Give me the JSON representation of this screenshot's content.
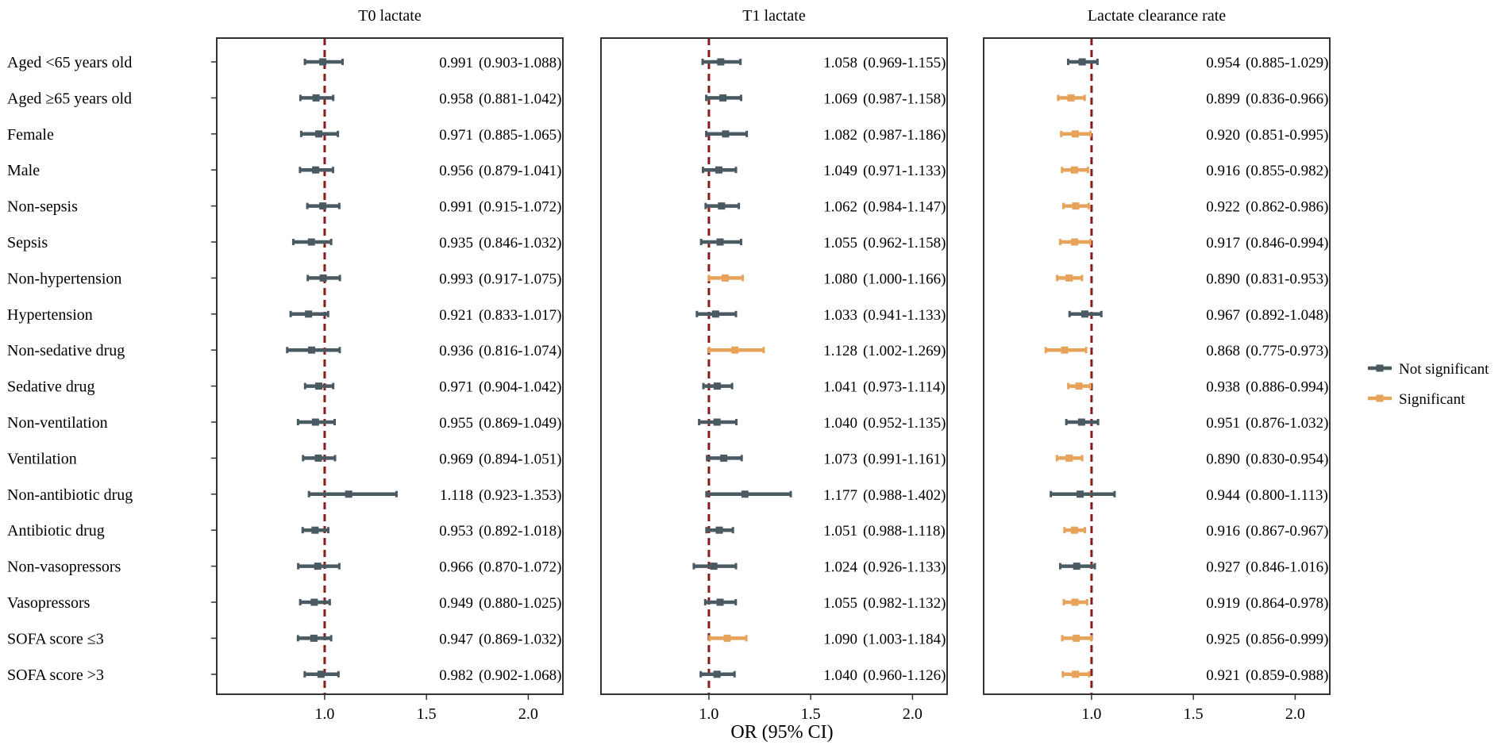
{
  "colors": {
    "not_significant": "#4a5a63",
    "significant": "#e8a35a",
    "reference": "#8b1a1a",
    "frame": "#333333"
  },
  "chart_data": {
    "type": "forest",
    "xlabel": "OR (95% CI)",
    "x_ticks": [
      "1.0",
      "1.5",
      "2.0"
    ],
    "x_tick_values": [
      1.0,
      1.5,
      2.0
    ],
    "xlim": [
      0.47,
      2.17
    ],
    "reference_line": 1.0,
    "legend": {
      "position": "right",
      "items": [
        {
          "label": "Not significant",
          "key": "not_significant"
        },
        {
          "label": "Significant",
          "key": "significant"
        }
      ]
    },
    "row_labels": [
      "Aged <65 years old",
      "Aged ≥65 years old",
      "Female",
      "Male",
      "Non-sepsis",
      "Sepsis",
      "Non-hypertension",
      "Hypertension",
      "Non-sedative drug",
      "Sedative drug",
      "Non-ventilation",
      "Ventilation",
      "Non-antibiotic drug",
      "Antibiotic drug",
      "Non-vasopressors",
      "Vasopressors",
      "SOFA score ≤3",
      "SOFA score >3"
    ],
    "panels": [
      {
        "title": "T0 lactate",
        "rows": [
          {
            "or": 0.991,
            "lo": 0.903,
            "hi": 1.088,
            "label_or": "0.991",
            "label_ci": "(0.903-1.088)",
            "significant": false
          },
          {
            "or": 0.958,
            "lo": 0.881,
            "hi": 1.042,
            "label_or": "0.958",
            "label_ci": "(0.881-1.042)",
            "significant": false
          },
          {
            "or": 0.971,
            "lo": 0.885,
            "hi": 1.065,
            "label_or": "0.971",
            "label_ci": "(0.885-1.065)",
            "significant": false
          },
          {
            "or": 0.956,
            "lo": 0.879,
            "hi": 1.041,
            "label_or": "0.956",
            "label_ci": "(0.879-1.041)",
            "significant": false
          },
          {
            "or": 0.991,
            "lo": 0.915,
            "hi": 1.072,
            "label_or": "0.991",
            "label_ci": "(0.915-1.072)",
            "significant": false
          },
          {
            "or": 0.935,
            "lo": 0.846,
            "hi": 1.032,
            "label_or": "0.935",
            "label_ci": "(0.846-1.032)",
            "significant": false
          },
          {
            "or": 0.993,
            "lo": 0.917,
            "hi": 1.075,
            "label_or": "0.993",
            "label_ci": "(0.917-1.075)",
            "significant": false
          },
          {
            "or": 0.921,
            "lo": 0.833,
            "hi": 1.017,
            "label_or": "0.921",
            "label_ci": "(0.833-1.017)",
            "significant": false
          },
          {
            "or": 0.936,
            "lo": 0.816,
            "hi": 1.074,
            "label_or": "0.936",
            "label_ci": "(0.816-1.074)",
            "significant": false
          },
          {
            "or": 0.971,
            "lo": 0.904,
            "hi": 1.042,
            "label_or": "0.971",
            "label_ci": "(0.904-1.042)",
            "significant": false
          },
          {
            "or": 0.955,
            "lo": 0.869,
            "hi": 1.049,
            "label_or": "0.955",
            "label_ci": "(0.869-1.049)",
            "significant": false
          },
          {
            "or": 0.969,
            "lo": 0.894,
            "hi": 1.051,
            "label_or": "0.969",
            "label_ci": "(0.894-1.051)",
            "significant": false
          },
          {
            "or": 1.118,
            "lo": 0.923,
            "hi": 1.353,
            "label_or": "1.118",
            "label_ci": "(0.923-1.353)",
            "significant": false
          },
          {
            "or": 0.953,
            "lo": 0.892,
            "hi": 1.018,
            "label_or": "0.953",
            "label_ci": "(0.892-1.018)",
            "significant": false
          },
          {
            "or": 0.966,
            "lo": 0.87,
            "hi": 1.072,
            "label_or": "0.966",
            "label_ci": "(0.870-1.072)",
            "significant": false
          },
          {
            "or": 0.949,
            "lo": 0.88,
            "hi": 1.025,
            "label_or": "0.949",
            "label_ci": "(0.880-1.025)",
            "significant": false
          },
          {
            "or": 0.947,
            "lo": 0.869,
            "hi": 1.032,
            "label_or": "0.947",
            "label_ci": "(0.869-1.032)",
            "significant": false
          },
          {
            "or": 0.982,
            "lo": 0.902,
            "hi": 1.068,
            "label_or": "0.982",
            "label_ci": "(0.902-1.068)",
            "significant": false
          }
        ]
      },
      {
        "title": "T1 lactate",
        "rows": [
          {
            "or": 1.058,
            "lo": 0.969,
            "hi": 1.155,
            "label_or": "1.058",
            "label_ci": "(0.969-1.155)",
            "significant": false
          },
          {
            "or": 1.069,
            "lo": 0.987,
            "hi": 1.158,
            "label_or": "1.069",
            "label_ci": "(0.987-1.158)",
            "significant": false
          },
          {
            "or": 1.082,
            "lo": 0.987,
            "hi": 1.186,
            "label_or": "1.082",
            "label_ci": "(0.987-1.186)",
            "significant": false
          },
          {
            "or": 1.049,
            "lo": 0.971,
            "hi": 1.133,
            "label_or": "1.049",
            "label_ci": "(0.971-1.133)",
            "significant": false
          },
          {
            "or": 1.062,
            "lo": 0.984,
            "hi": 1.147,
            "label_or": "1.062",
            "label_ci": "(0.984-1.147)",
            "significant": false
          },
          {
            "or": 1.055,
            "lo": 0.962,
            "hi": 1.158,
            "label_or": "1.055",
            "label_ci": "(0.962-1.158)",
            "significant": false
          },
          {
            "or": 1.08,
            "lo": 1.0,
            "hi": 1.166,
            "label_or": "1.080",
            "label_ci": "(1.000-1.166)",
            "significant": true
          },
          {
            "or": 1.033,
            "lo": 0.941,
            "hi": 1.133,
            "label_or": "1.033",
            "label_ci": "(0.941-1.133)",
            "significant": false
          },
          {
            "or": 1.128,
            "lo": 1.002,
            "hi": 1.269,
            "label_or": "1.128",
            "label_ci": "(1.002-1.269)",
            "significant": true
          },
          {
            "or": 1.041,
            "lo": 0.973,
            "hi": 1.114,
            "label_or": "1.041",
            "label_ci": "(0.973-1.114)",
            "significant": false
          },
          {
            "or": 1.04,
            "lo": 0.952,
            "hi": 1.135,
            "label_or": "1.040",
            "label_ci": "(0.952-1.135)",
            "significant": false
          },
          {
            "or": 1.073,
            "lo": 0.991,
            "hi": 1.161,
            "label_or": "1.073",
            "label_ci": "(0.991-1.161)",
            "significant": false
          },
          {
            "or": 1.177,
            "lo": 0.988,
            "hi": 1.402,
            "label_or": "1.177",
            "label_ci": "(0.988-1.402)",
            "significant": false
          },
          {
            "or": 1.051,
            "lo": 0.988,
            "hi": 1.118,
            "label_or": "1.051",
            "label_ci": "(0.988-1.118)",
            "significant": false
          },
          {
            "or": 1.024,
            "lo": 0.926,
            "hi": 1.133,
            "label_or": "1.024",
            "label_ci": "(0.926-1.133)",
            "significant": false
          },
          {
            "or": 1.055,
            "lo": 0.982,
            "hi": 1.132,
            "label_or": "1.055",
            "label_ci": "(0.982-1.132)",
            "significant": false
          },
          {
            "or": 1.09,
            "lo": 1.003,
            "hi": 1.184,
            "label_or": "1.090",
            "label_ci": "(1.003-1.184)",
            "significant": true
          },
          {
            "or": 1.04,
            "lo": 0.96,
            "hi": 1.126,
            "label_or": "1.040",
            "label_ci": "(0.960-1.126)",
            "significant": false
          }
        ]
      },
      {
        "title": "Lactate clearance rate",
        "rows": [
          {
            "or": 0.954,
            "lo": 0.885,
            "hi": 1.029,
            "label_or": "0.954",
            "label_ci": "(0.885-1.029)",
            "significant": false
          },
          {
            "or": 0.899,
            "lo": 0.836,
            "hi": 0.966,
            "label_or": "0.899",
            "label_ci": "(0.836-0.966)",
            "significant": true
          },
          {
            "or": 0.92,
            "lo": 0.851,
            "hi": 0.995,
            "label_or": "0.920",
            "label_ci": "(0.851-0.995)",
            "significant": true
          },
          {
            "or": 0.916,
            "lo": 0.855,
            "hi": 0.982,
            "label_or": "0.916",
            "label_ci": "(0.855-0.982)",
            "significant": true
          },
          {
            "or": 0.922,
            "lo": 0.862,
            "hi": 0.986,
            "label_or": "0.922",
            "label_ci": "(0.862-0.986)",
            "significant": true
          },
          {
            "or": 0.917,
            "lo": 0.846,
            "hi": 0.994,
            "label_or": "0.917",
            "label_ci": "(0.846-0.994)",
            "significant": true
          },
          {
            "or": 0.89,
            "lo": 0.831,
            "hi": 0.953,
            "label_or": "0.890",
            "label_ci": "(0.831-0.953)",
            "significant": true
          },
          {
            "or": 0.967,
            "lo": 0.892,
            "hi": 1.048,
            "label_or": "0.967",
            "label_ci": "(0.892-1.048)",
            "significant": false
          },
          {
            "or": 0.868,
            "lo": 0.775,
            "hi": 0.973,
            "label_or": "0.868",
            "label_ci": "(0.775-0.973)",
            "significant": true
          },
          {
            "or": 0.938,
            "lo": 0.886,
            "hi": 0.994,
            "label_or": "0.938",
            "label_ci": "(0.886-0.994)",
            "significant": true
          },
          {
            "or": 0.951,
            "lo": 0.876,
            "hi": 1.032,
            "label_or": "0.951",
            "label_ci": "(0.876-1.032)",
            "significant": false
          },
          {
            "or": 0.89,
            "lo": 0.83,
            "hi": 0.954,
            "label_or": "0.890",
            "label_ci": "(0.830-0.954)",
            "significant": true
          },
          {
            "or": 0.944,
            "lo": 0.8,
            "hi": 1.113,
            "label_or": "0.944",
            "label_ci": "(0.800-1.113)",
            "significant": false
          },
          {
            "or": 0.916,
            "lo": 0.867,
            "hi": 0.967,
            "label_or": "0.916",
            "label_ci": "(0.867-0.967)",
            "significant": true
          },
          {
            "or": 0.927,
            "lo": 0.846,
            "hi": 1.016,
            "label_or": "0.927",
            "label_ci": "(0.846-1.016)",
            "significant": false
          },
          {
            "or": 0.919,
            "lo": 0.864,
            "hi": 0.978,
            "label_or": "0.919",
            "label_ci": "(0.864-0.978)",
            "significant": true
          },
          {
            "or": 0.925,
            "lo": 0.856,
            "hi": 0.999,
            "label_or": "0.925",
            "label_ci": "(0.856-0.999)",
            "significant": true
          },
          {
            "or": 0.921,
            "lo": 0.859,
            "hi": 0.988,
            "label_or": "0.921",
            "label_ci": "(0.859-0.988)",
            "significant": true
          }
        ]
      }
    ]
  }
}
